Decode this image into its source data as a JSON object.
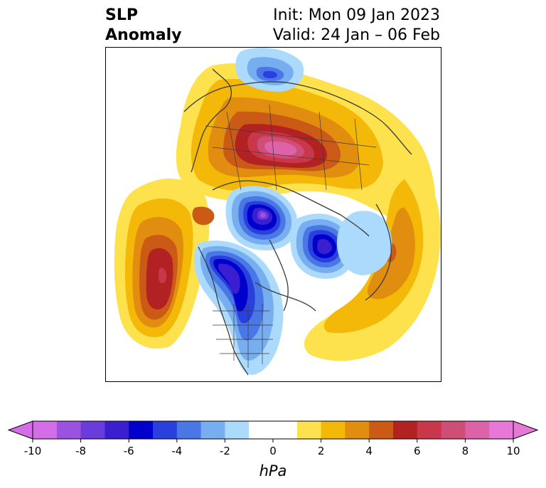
{
  "title": {
    "left_line1": "SLP",
    "left_line2": "Anomaly",
    "right_line1": "Init: Mon 09 Jan 2023",
    "right_line2": "Valid: 24 Jan – 06 Feb"
  },
  "colorbar": {
    "unit": "hPa",
    "levels": [
      -10,
      -9,
      -8,
      -7,
      -6,
      -5,
      -4,
      -3,
      -2,
      -1,
      1,
      2,
      3,
      4,
      5,
      6,
      7,
      8,
      9,
      10
    ],
    "tick_labels": [
      "-10",
      "-8",
      "-6",
      "-4",
      "-2",
      "0",
      "2",
      "4",
      "6",
      "8",
      "10"
    ],
    "colors": [
      "#d46ee8",
      "#9b52de",
      "#6b3bdb",
      "#3a1fd1",
      "#0000cc",
      "#2a40dd",
      "#4a77e6",
      "#76aef0",
      "#acdafc",
      "#ffffff",
      "#fde24d",
      "#f3b808",
      "#e08d10",
      "#ca5a16",
      "#b32222",
      "#c8384a",
      "#cf4e78",
      "#dd63a8",
      "#e878d8"
    ],
    "extend_low_color": "#d46ee8",
    "extend_high_color": "#e878d8"
  },
  "map_anomalies": [
    {
      "name": "siberia-high",
      "kind": "positive",
      "peak": 9
    },
    {
      "name": "north-pacific-high",
      "kind": "positive",
      "peak": 6
    },
    {
      "name": "atlantic-europe-high",
      "kind": "positive",
      "peak": 5
    },
    {
      "name": "arctic-canada-low",
      "kind": "negative",
      "peak": -7
    },
    {
      "name": "greenland-low",
      "kind": "negative",
      "peak": -6
    },
    {
      "name": "alaska-west-canada-low",
      "kind": "negative",
      "peak": -6
    },
    {
      "name": "east-asia-low",
      "kind": "negative",
      "peak": -4
    }
  ]
}
